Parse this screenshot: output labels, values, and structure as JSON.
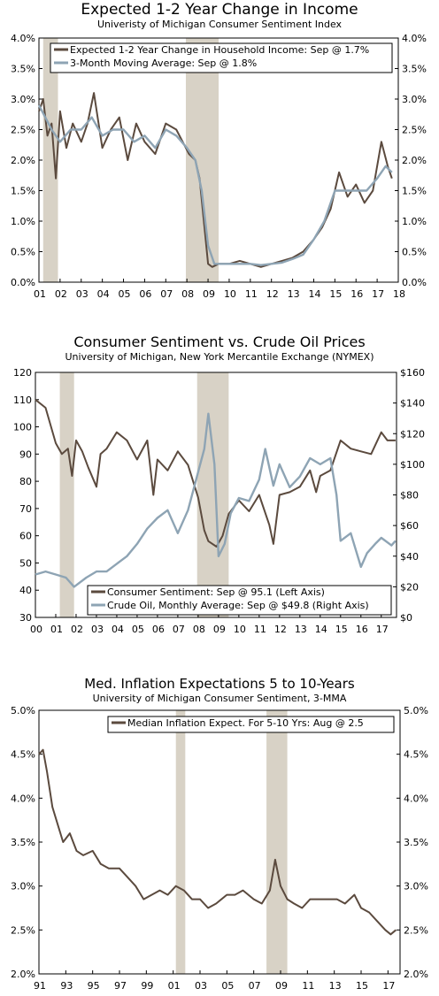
{
  "colors": {
    "primary": "#5b4a3e",
    "secondary": "#8ea4b4",
    "recession": "#d8d2c6"
  },
  "chart_data": [
    {
      "type": "line",
      "title": "Expected 1-2 Year Change in Income",
      "subtitle": "Univeristy of Michigan Consumer Sentiment Index",
      "xlim": [
        2001.0,
        2018.0
      ],
      "ylim": [
        0,
        4.0
      ],
      "y_ticks": [
        "0.0%",
        "0.5%",
        "1.0%",
        "1.5%",
        "2.0%",
        "2.5%",
        "3.0%",
        "3.5%",
        "4.0%"
      ],
      "y_ticks_right": [
        "0.0%",
        "0.5%",
        "1.0%",
        "1.5%",
        "2.0%",
        "2.5%",
        "3.0%",
        "3.5%",
        "4.0%"
      ],
      "x_ticks": [
        "01",
        "02",
        "03",
        "04",
        "05",
        "06",
        "07",
        "08",
        "09",
        "10",
        "11",
        "12",
        "13",
        "14",
        "15",
        "16",
        "17",
        "18"
      ],
      "recessions": [
        [
          2001.2,
          2001.9
        ],
        [
          2007.95,
          2009.5
        ]
      ],
      "legend": [
        "Expected 1-2 Year Change in Household Income: Sep @ 1.7%",
        "3-Month Moving Average: Sep @ 1.8%"
      ],
      "series": [
        {
          "name": "Expected 1-2 Year Change in Household Income: Sep @ 1.7%",
          "x": [
            2001.0,
            2001.2,
            2001.4,
            2001.6,
            2001.8,
            2002.0,
            2002.3,
            2002.6,
            2003.0,
            2003.3,
            2003.6,
            2004.0,
            2004.4,
            2004.8,
            2005.2,
            2005.6,
            2006.0,
            2006.5,
            2007.0,
            2007.5,
            2007.8,
            2008.1,
            2008.4,
            2008.6,
            2008.8,
            2009.0,
            2009.2,
            2009.5,
            2010.0,
            2010.5,
            2011.0,
            2011.5,
            2012.0,
            2012.5,
            2013.0,
            2013.5,
            2014.0,
            2014.4,
            2014.8,
            2015.2,
            2015.6,
            2016.0,
            2016.4,
            2016.8,
            2017.2,
            2017.5,
            2017.7
          ],
          "values": [
            2.8,
            3.0,
            2.4,
            2.6,
            1.7,
            2.8,
            2.2,
            2.6,
            2.3,
            2.6,
            3.1,
            2.2,
            2.5,
            2.7,
            2.0,
            2.6,
            2.3,
            2.1,
            2.6,
            2.5,
            2.3,
            2.1,
            2.0,
            1.7,
            1.0,
            0.3,
            0.25,
            0.3,
            0.3,
            0.35,
            0.3,
            0.25,
            0.3,
            0.35,
            0.4,
            0.5,
            0.7,
            0.9,
            1.2,
            1.8,
            1.4,
            1.6,
            1.3,
            1.5,
            2.3,
            1.9,
            1.7
          ]
        },
        {
          "name": "3-Month Moving Average: Sep @ 1.8%",
          "x": [
            2001.0,
            2001.3,
            2001.6,
            2002.0,
            2002.5,
            2003.0,
            2003.5,
            2004.0,
            2004.5,
            2005.0,
            2005.5,
            2006.0,
            2006.5,
            2007.0,
            2007.5,
            2008.0,
            2008.4,
            2008.7,
            2009.0,
            2009.3,
            2009.6,
            2010.0,
            2010.5,
            2011.0,
            2011.5,
            2012.0,
            2012.5,
            2013.0,
            2013.5,
            2014.0,
            2014.5,
            2015.0,
            2015.5,
            2016.0,
            2016.5,
            2017.0,
            2017.4,
            2017.7
          ],
          "values": [
            2.9,
            2.7,
            2.5,
            2.3,
            2.5,
            2.5,
            2.7,
            2.4,
            2.5,
            2.5,
            2.3,
            2.4,
            2.2,
            2.5,
            2.4,
            2.2,
            2.0,
            1.5,
            0.6,
            0.3,
            0.3,
            0.3,
            0.3,
            0.3,
            0.28,
            0.3,
            0.32,
            0.38,
            0.45,
            0.7,
            1.0,
            1.5,
            1.5,
            1.5,
            1.5,
            1.7,
            1.9,
            1.8
          ]
        }
      ]
    },
    {
      "type": "line",
      "title": "Consumer Sentiment vs. Crude Oil Prices",
      "subtitle": "University of Michigan, New York Mercantile Exchange (NYMEX)",
      "xlim": [
        2000.0,
        2017.75
      ],
      "ylim": [
        30,
        120
      ],
      "ylim_right": [
        0,
        160
      ],
      "y_ticks": [
        "30",
        "40",
        "50",
        "60",
        "70",
        "80",
        "90",
        "100",
        "110",
        "120"
      ],
      "y_ticks_right": [
        "$0",
        "$20",
        "$40",
        "$60",
        "$80",
        "$100",
        "$120",
        "$140",
        "$160"
      ],
      "x_ticks": [
        "00",
        "01",
        "02",
        "03",
        "04",
        "05",
        "06",
        "07",
        "08",
        "09",
        "10",
        "11",
        "12",
        "13",
        "14",
        "15",
        "16",
        "17"
      ],
      "recessions": [
        [
          2001.2,
          2001.9
        ],
        [
          2007.95,
          2009.5
        ]
      ],
      "legend": [
        "Consumer Sentiment: Sep @ 95.1 (Left Axis)",
        "Crude Oil, Monthly Average: Sep @ $49.8 (Right Axis)"
      ],
      "series": [
        {
          "name": "Consumer Sentiment: Sep @ 95.1 (Left Axis)",
          "axis": "left",
          "x": [
            2000.0,
            2000.5,
            2001.0,
            2001.3,
            2001.6,
            2001.8,
            2002.0,
            2002.3,
            2002.6,
            2003.0,
            2003.2,
            2003.5,
            2004.0,
            2004.5,
            2005.0,
            2005.5,
            2005.8,
            2006.0,
            2006.5,
            2007.0,
            2007.5,
            2008.0,
            2008.3,
            2008.5,
            2008.9,
            2009.2,
            2009.5,
            2010.0,
            2010.5,
            2011.0,
            2011.5,
            2011.7,
            2012.0,
            2012.5,
            2013.0,
            2013.5,
            2013.8,
            2014.0,
            2014.5,
            2015.0,
            2015.5,
            2016.0,
            2016.5,
            2017.0,
            2017.3,
            2017.7
          ],
          "values": [
            110,
            107,
            94,
            90,
            92,
            82,
            95,
            91,
            85,
            78,
            90,
            92,
            98,
            95,
            88,
            95,
            75,
            88,
            84,
            91,
            86,
            74,
            62,
            58,
            56,
            60,
            68,
            73,
            69,
            75,
            64,
            57,
            75,
            76,
            78,
            84,
            76,
            82,
            84,
            95,
            92,
            91,
            90,
            98,
            95,
            95
          ]
        },
        {
          "name": "Crude Oil, Monthly Average: Sep @ $49.8 (Right Axis)",
          "axis": "right",
          "x": [
            2000.0,
            2000.5,
            2001.0,
            2001.5,
            2001.9,
            2002.5,
            2003.0,
            2003.5,
            2004.0,
            2004.5,
            2005.0,
            2005.5,
            2006.0,
            2006.5,
            2007.0,
            2007.5,
            2008.0,
            2008.3,
            2008.5,
            2008.8,
            2009.0,
            2009.3,
            2009.6,
            2010.0,
            2010.5,
            2011.0,
            2011.3,
            2011.7,
            2012.0,
            2012.5,
            2013.0,
            2013.5,
            2014.0,
            2014.5,
            2014.8,
            2015.0,
            2015.5,
            2016.0,
            2016.3,
            2016.7,
            2017.0,
            2017.5,
            2017.7
          ],
          "values": [
            28,
            30,
            28,
            26,
            20,
            26,
            30,
            30,
            35,
            40,
            48,
            58,
            65,
            70,
            55,
            70,
            95,
            110,
            133,
            100,
            40,
            48,
            68,
            78,
            76,
            90,
            110,
            86,
            100,
            85,
            92,
            104,
            100,
            104,
            80,
            50,
            55,
            33,
            42,
            48,
            52,
            47,
            50
          ]
        }
      ]
    },
    {
      "type": "line",
      "title": "Med. Inflation Expectations 5 to 10-Years",
      "subtitle": "University of Michigan Consumer Sentiment,  3-MMA",
      "xlim": [
        1991.0,
        2017.9
      ],
      "ylim": [
        2.0,
        5.0
      ],
      "y_ticks": [
        "2.0%",
        "2.5%",
        "3.0%",
        "3.5%",
        "4.0%",
        "4.5%",
        "5.0%"
      ],
      "y_ticks_right": [
        "2.0%",
        "2.5%",
        "3.0%",
        "3.5%",
        "4.0%",
        "4.5%",
        "5.0%"
      ],
      "x_ticks": [
        "91",
        "93",
        "95",
        "97",
        "99",
        "01",
        "03",
        "05",
        "07",
        "09",
        "11",
        "13",
        "15",
        "17"
      ],
      "recessions": [
        [
          2001.2,
          2001.9
        ],
        [
          2007.95,
          2009.5
        ]
      ],
      "legend": [
        "Median Inflation Expect. For 5-10 Yrs: Aug @ 2.5"
      ],
      "series": [
        {
          "name": "Median Inflation Expect. For 5-10 Yrs: Aug @ 2.5",
          "x": [
            1991.0,
            1991.3,
            1991.6,
            1992.0,
            1992.4,
            1992.8,
            1993.3,
            1993.8,
            1994.3,
            1995.0,
            1995.6,
            1996.2,
            1997.0,
            1997.6,
            1998.2,
            1998.8,
            1999.4,
            2000.0,
            2000.6,
            2001.2,
            2001.8,
            2002.4,
            2003.0,
            2003.6,
            2004.2,
            2005.0,
            2005.6,
            2006.2,
            2007.0,
            2007.6,
            2008.2,
            2008.6,
            2009.0,
            2009.5,
            2010.0,
            2010.6,
            2011.2,
            2012.0,
            2012.6,
            2013.2,
            2013.8,
            2014.5,
            2015.0,
            2015.6,
            2016.2,
            2016.8,
            2017.2,
            2017.6
          ],
          "values": [
            4.5,
            4.55,
            4.3,
            3.9,
            3.7,
            3.5,
            3.6,
            3.4,
            3.35,
            3.4,
            3.25,
            3.2,
            3.2,
            3.1,
            3.0,
            2.85,
            2.9,
            2.95,
            2.9,
            3.0,
            2.95,
            2.85,
            2.85,
            2.75,
            2.8,
            2.9,
            2.9,
            2.95,
            2.85,
            2.8,
            2.95,
            3.3,
            3.0,
            2.85,
            2.8,
            2.75,
            2.85,
            2.85,
            2.85,
            2.85,
            2.8,
            2.9,
            2.75,
            2.7,
            2.6,
            2.5,
            2.45,
            2.5
          ]
        }
      ]
    }
  ]
}
